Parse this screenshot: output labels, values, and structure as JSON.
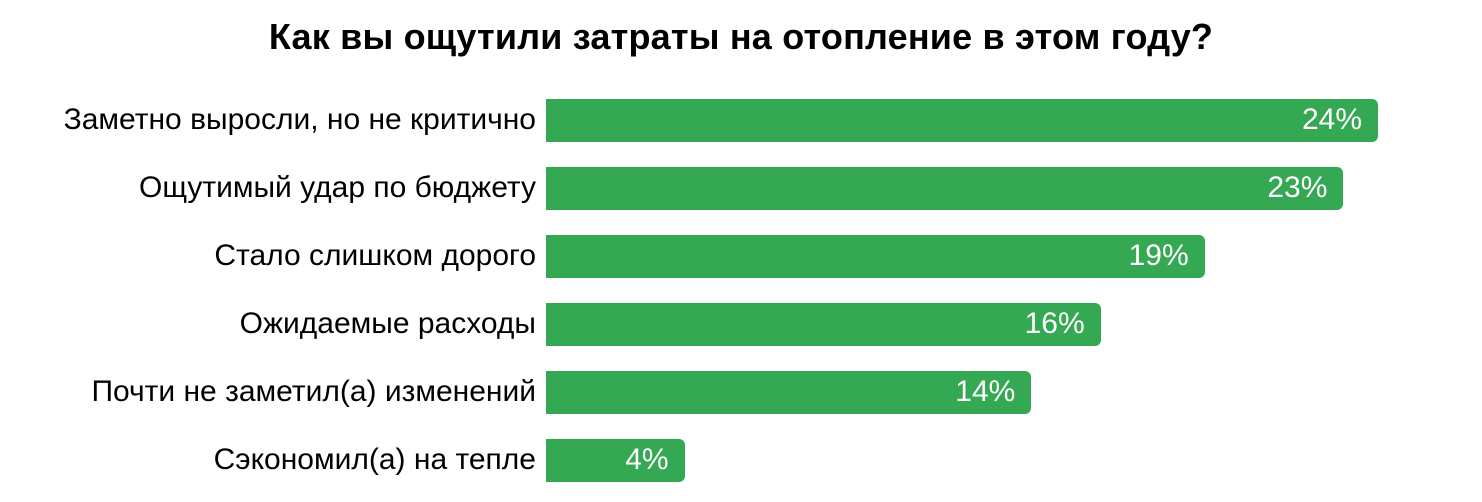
{
  "chart_data": {
    "type": "bar",
    "orientation": "horizontal",
    "title": "Как вы ощутили затраты на отопление в этом году?",
    "categories": [
      "Заметно выросли, но не критично",
      "Ощутимый удар по бюджету",
      "Стало слишком дорого",
      "Ожидаемые расходы",
      "Почти не заметил(а) изменений",
      "Сэкономил(а) на тепле"
    ],
    "values": [
      24,
      23,
      19,
      16,
      14,
      4
    ],
    "value_labels": [
      "24%",
      "23%",
      "19%",
      "16%",
      "14%",
      "4%"
    ],
    "value_suffix": "%",
    "xlim": [
      0,
      27
    ],
    "grid": false,
    "legend": false,
    "axis_ticks_visible": false,
    "bar_color": "#34a853",
    "value_label_color": "#ffffff",
    "category_label_color": "#000000",
    "title_color": "#000000",
    "background_color": "#ffffff"
  }
}
